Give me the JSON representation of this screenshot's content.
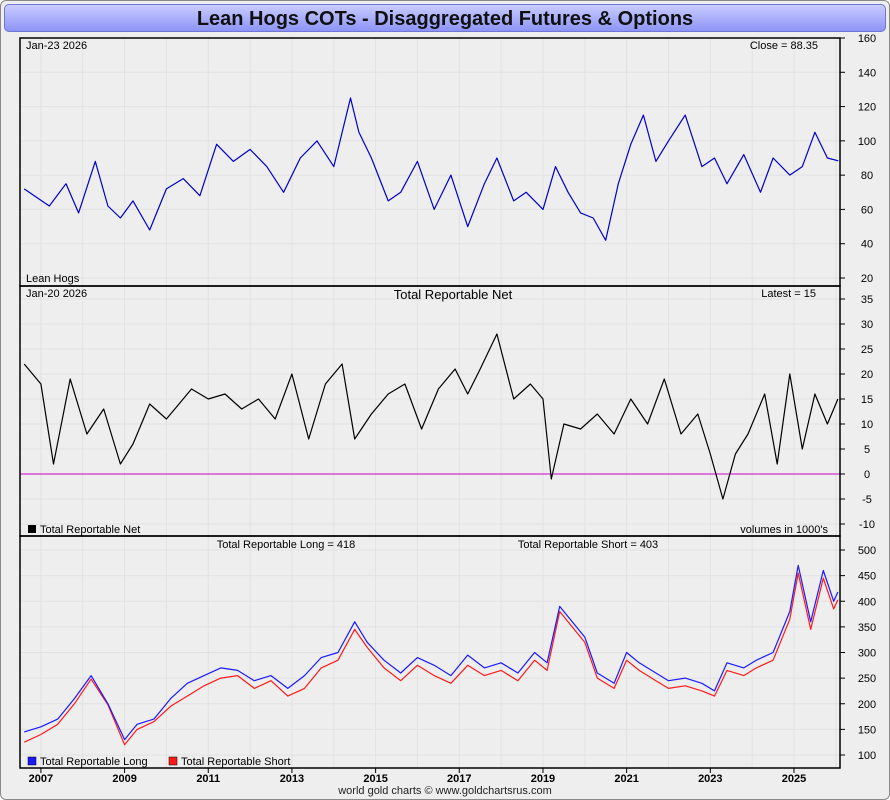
{
  "title": "Lean Hogs COTs - Disaggregated Futures & Options",
  "footer": "world gold charts © www.goldchartsrus.com",
  "x_axis": {
    "ticks": [
      "2007",
      "2009",
      "2011",
      "2013",
      "2015",
      "2017",
      "2019",
      "2021",
      "2023",
      "2025"
    ],
    "range": [
      2006.5,
      2026.1
    ]
  },
  "colors": {
    "price": "#0000cc",
    "net": "#000000",
    "zero_line": "#cc00cc",
    "long": "#1a1aff",
    "short": "#ff1a1a",
    "title_bar": "#a9aefb"
  },
  "panels": {
    "price": {
      "date_label": "Jan-23  2026",
      "corner_label": "Close = 88.35",
      "series_label": "Lean Hogs",
      "yticks": [
        "160",
        "140",
        "120",
        "100",
        "80",
        "60",
        "40",
        "20"
      ]
    },
    "net": {
      "date_label": "Jan-20  2026",
      "center_label": "Total Reportable Net",
      "corner_label": "Latest = 15",
      "legend_label": "Total Reportable Net",
      "units_label": "volumes in 1000's",
      "yticks": [
        "35",
        "30",
        "25",
        "20",
        "15",
        "10",
        "5",
        "0",
        "-5",
        "-10"
      ]
    },
    "oi": {
      "long_label": "Total Reportable Long = 418",
      "short_label": "Total Reportable Short = 403",
      "legend_long": "Total Reportable Long",
      "legend_short": "Total Reportable Short",
      "yticks": [
        "500",
        "450",
        "400",
        "350",
        "300",
        "250",
        "200",
        "150",
        "100"
      ]
    }
  },
  "chart_data": [
    {
      "type": "line",
      "title": "",
      "xlabel": "",
      "ylabel": "",
      "ylim": [
        20,
        160
      ],
      "grid": true,
      "series": [
        {
          "name": "Lean Hogs",
          "x": [
            2006.6,
            2007.2,
            2007.6,
            2007.9,
            2008.3,
            2008.6,
            2008.9,
            2009.2,
            2009.6,
            2010.0,
            2010.4,
            2010.8,
            2011.2,
            2011.6,
            2012.0,
            2012.4,
            2012.8,
            2013.2,
            2013.6,
            2014.0,
            2014.4,
            2014.6,
            2014.9,
            2015.3,
            2015.6,
            2016.0,
            2016.4,
            2016.8,
            2017.2,
            2017.6,
            2017.9,
            2018.3,
            2018.6,
            2019.0,
            2019.3,
            2019.6,
            2019.9,
            2020.2,
            2020.5,
            2020.8,
            2021.1,
            2021.4,
            2021.7,
            2022.0,
            2022.4,
            2022.8,
            2023.1,
            2023.4,
            2023.8,
            2024.2,
            2024.5,
            2024.9,
            2025.2,
            2025.5,
            2025.8,
            2026.06
          ],
          "y": [
            72,
            62,
            75,
            58,
            88,
            62,
            55,
            65,
            48,
            72,
            78,
            68,
            98,
            88,
            95,
            85,
            70,
            90,
            100,
            85,
            125,
            105,
            90,
            65,
            70,
            88,
            60,
            80,
            50,
            75,
            90,
            65,
            70,
            60,
            85,
            70,
            58,
            55,
            42,
            75,
            98,
            115,
            88,
            100,
            115,
            85,
            90,
            75,
            92,
            70,
            90,
            80,
            85,
            105,
            90,
            88.35
          ]
        }
      ]
    },
    {
      "type": "line",
      "title": "Total Reportable Net",
      "xlabel": "",
      "ylabel": "",
      "ylim": [
        -10,
        35
      ],
      "grid": true,
      "series": [
        {
          "name": "Total Reportable Net",
          "x": [
            2006.6,
            2007.0,
            2007.3,
            2007.7,
            2008.1,
            2008.5,
            2008.9,
            2009.2,
            2009.6,
            2010.0,
            2010.3,
            2010.6,
            2011.0,
            2011.4,
            2011.8,
            2012.2,
            2012.6,
            2013.0,
            2013.4,
            2013.8,
            2014.2,
            2014.5,
            2014.9,
            2015.3,
            2015.7,
            2016.1,
            2016.5,
            2016.9,
            2017.2,
            2017.5,
            2017.9,
            2018.3,
            2018.7,
            2019.0,
            2019.2,
            2019.5,
            2019.9,
            2020.3,
            2020.7,
            2021.1,
            2021.5,
            2021.9,
            2022.3,
            2022.7,
            2023.0,
            2023.3,
            2023.6,
            2023.9,
            2024.3,
            2024.6,
            2024.9,
            2025.2,
            2025.5,
            2025.8,
            2026.05
          ],
          "y": [
            22,
            18,
            2,
            19,
            8,
            13,
            2,
            6,
            14,
            11,
            14,
            17,
            15,
            16,
            13,
            15,
            11,
            20,
            7,
            18,
            22,
            7,
            12,
            16,
            18,
            9,
            17,
            21,
            16,
            21,
            28,
            15,
            18,
            15,
            -1,
            10,
            9,
            12,
            8,
            15,
            10,
            19,
            8,
            12,
            4,
            -5,
            4,
            8,
            16,
            2,
            20,
            5,
            16,
            10,
            15
          ]
        }
      ]
    },
    {
      "type": "line",
      "title": "",
      "xlabel": "",
      "ylabel": "",
      "ylim": [
        100,
        500
      ],
      "grid": true,
      "series": [
        {
          "name": "Total Reportable Long",
          "x": [
            2006.6,
            2007.0,
            2007.4,
            2007.8,
            2008.2,
            2008.6,
            2009.0,
            2009.3,
            2009.7,
            2010.1,
            2010.5,
            2010.9,
            2011.3,
            2011.7,
            2012.1,
            2012.5,
            2012.9,
            2013.3,
            2013.7,
            2014.1,
            2014.5,
            2014.8,
            2015.2,
            2015.6,
            2016.0,
            2016.4,
            2016.8,
            2017.2,
            2017.6,
            2018.0,
            2018.4,
            2018.8,
            2019.1,
            2019.4,
            2019.7,
            2020.0,
            2020.3,
            2020.7,
            2021.0,
            2021.3,
            2021.7,
            2022.0,
            2022.4,
            2022.8,
            2023.1,
            2023.4,
            2023.8,
            2024.1,
            2024.5,
            2024.9,
            2025.1,
            2025.4,
            2025.7,
            2025.95,
            2026.05
          ],
          "y": [
            145,
            155,
            170,
            210,
            255,
            200,
            130,
            160,
            170,
            210,
            240,
            255,
            270,
            265,
            245,
            255,
            230,
            255,
            290,
            300,
            360,
            320,
            285,
            260,
            290,
            275,
            255,
            295,
            270,
            280,
            260,
            300,
            280,
            390,
            360,
            330,
            260,
            240,
            300,
            280,
            260,
            245,
            250,
            240,
            225,
            280,
            270,
            285,
            300,
            380,
            470,
            360,
            460,
            400,
            418
          ]
        },
        {
          "name": "Total Reportable Short",
          "x": [
            2006.6,
            2007.0,
            2007.4,
            2007.8,
            2008.2,
            2008.6,
            2009.0,
            2009.3,
            2009.7,
            2010.1,
            2010.5,
            2010.9,
            2011.3,
            2011.7,
            2012.1,
            2012.5,
            2012.9,
            2013.3,
            2013.7,
            2014.1,
            2014.5,
            2014.8,
            2015.2,
            2015.6,
            2016.0,
            2016.4,
            2016.8,
            2017.2,
            2017.6,
            2018.0,
            2018.4,
            2018.8,
            2019.1,
            2019.4,
            2019.7,
            2020.0,
            2020.3,
            2020.7,
            2021.0,
            2021.3,
            2021.7,
            2022.0,
            2022.4,
            2022.8,
            2023.1,
            2023.4,
            2023.8,
            2024.1,
            2024.5,
            2024.9,
            2025.1,
            2025.4,
            2025.7,
            2025.95,
            2026.05
          ],
          "y": [
            125,
            140,
            160,
            200,
            248,
            198,
            120,
            150,
            165,
            195,
            215,
            235,
            250,
            255,
            230,
            245,
            215,
            230,
            270,
            285,
            345,
            310,
            270,
            245,
            275,
            255,
            240,
            275,
            255,
            265,
            245,
            285,
            265,
            380,
            350,
            320,
            250,
            230,
            285,
            265,
            245,
            230,
            235,
            225,
            215,
            265,
            255,
            270,
            285,
            365,
            455,
            345,
            445,
            385,
            403
          ]
        }
      ]
    }
  ]
}
